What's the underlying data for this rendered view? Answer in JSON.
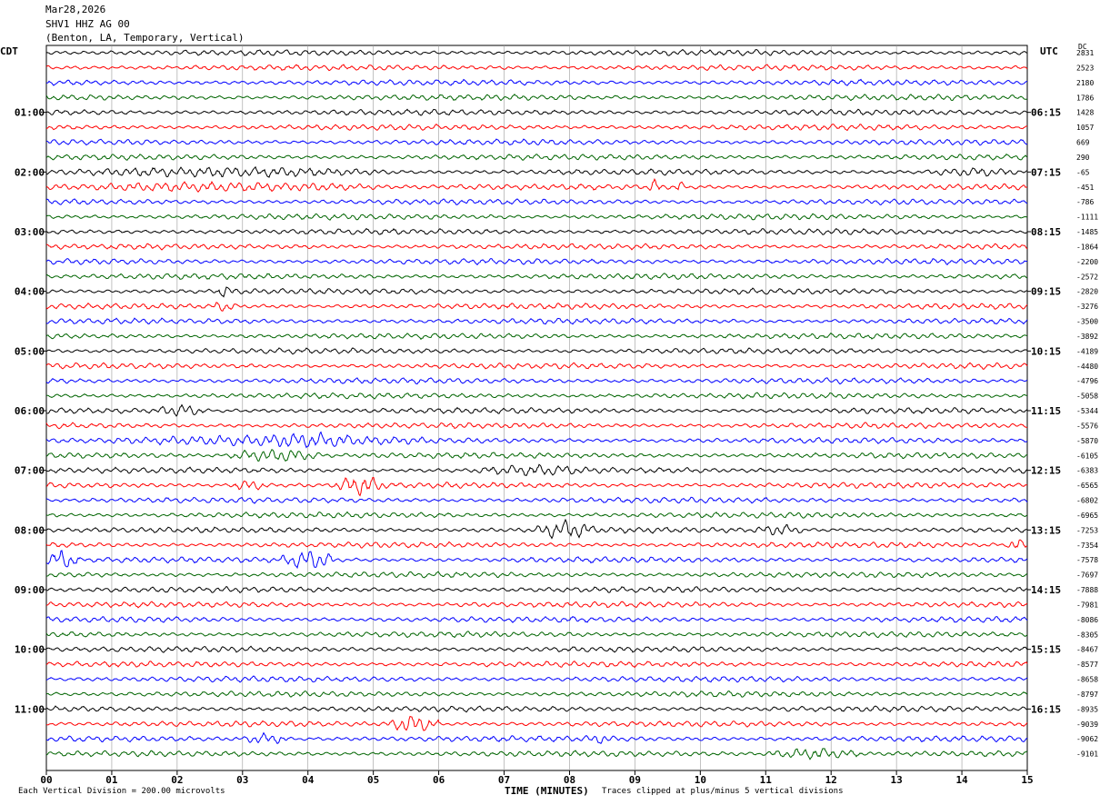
{
  "header": {
    "date": "Mar28,2026",
    "station": "SHV1 HHZ AG 00",
    "location": "(Benton, LA, Temporary, Vertical)"
  },
  "left_zone": "CDT",
  "right_zone": "UTC",
  "dc_label": "DC",
  "footer": {
    "scale": "Each Vertical Division =  200.00 microvolts",
    "clip": "Traces clipped at plus/minus 5 vertical divisions"
  },
  "chart_data": {
    "type": "line",
    "title": "",
    "xlabel": "TIME (MINUTES)",
    "ylabel": "",
    "xlim": [
      0,
      15
    ],
    "x_ticks": [
      "00",
      "01",
      "02",
      "03",
      "04",
      "05",
      "06",
      "07",
      "08",
      "09",
      "10",
      "11",
      "12",
      "13",
      "14",
      "15"
    ],
    "rows": 48,
    "minutes_per_row": 15,
    "trace_colors": [
      "#000000",
      "#ff0000",
      "#0000ff",
      "#006400"
    ],
    "cdt_labels": [
      {
        "row": 4,
        "label": "01:00"
      },
      {
        "row": 8,
        "label": "02:00"
      },
      {
        "row": 12,
        "label": "03:00"
      },
      {
        "row": 16,
        "label": "04:00"
      },
      {
        "row": 20,
        "label": "05:00"
      },
      {
        "row": 24,
        "label": "06:00"
      },
      {
        "row": 28,
        "label": "07:00"
      },
      {
        "row": 32,
        "label": "08:00"
      },
      {
        "row": 36,
        "label": "09:00"
      },
      {
        "row": 40,
        "label": "10:00"
      },
      {
        "row": 44,
        "label": "11:00"
      }
    ],
    "utc_labels": [
      {
        "row": 4,
        "label": "06:15"
      },
      {
        "row": 8,
        "label": "07:15"
      },
      {
        "row": 12,
        "label": "08:15"
      },
      {
        "row": 16,
        "label": "09:15"
      },
      {
        "row": 20,
        "label": "10:15"
      },
      {
        "row": 24,
        "label": "11:15"
      },
      {
        "row": 28,
        "label": "12:15"
      },
      {
        "row": 32,
        "label": "13:15"
      },
      {
        "row": 36,
        "label": "14:15"
      },
      {
        "row": 40,
        "label": "15:15"
      },
      {
        "row": 44,
        "label": "16:15"
      }
    ],
    "dc_offsets": [
      "2831",
      "2523",
      "2180",
      "1786",
      "1428",
      "1057",
      "669",
      "290",
      "-65",
      "-451",
      "-786",
      "-1111",
      "-1485",
      "-1864",
      "-2200",
      "-2572",
      "-2820",
      "-3276",
      "-3500",
      "-3892",
      "-4189",
      "-4480",
      "-4796",
      "-5058",
      "-5344",
      "-5576",
      "-5870",
      "-6105",
      "-6383",
      "-6565",
      "-6802",
      "-6965",
      "-7253",
      "-7354",
      "-7578",
      "-7697",
      "-7888",
      "-7981",
      "-8086",
      "-8305",
      "-8467",
      "-8577",
      "-8658",
      "-8797",
      "-8935",
      "-9039",
      "-9062",
      "-9101"
    ],
    "events": [
      {
        "row": 8,
        "start": 0.0,
        "end": 5.3,
        "amp": 2.3
      },
      {
        "row": 9,
        "start": 0.0,
        "end": 5.3,
        "amp": 2.2
      },
      {
        "row": 8,
        "start": 13.4,
        "end": 15.0,
        "amp": 2.0
      },
      {
        "row": 9,
        "start": 9.2,
        "end": 9.4,
        "amp": 3.5
      },
      {
        "row": 9,
        "start": 9.6,
        "end": 9.75,
        "amp": 3.0
      },
      {
        "row": 16,
        "start": 2.6,
        "end": 2.9,
        "amp": 3.0
      },
      {
        "row": 17,
        "start": 2.5,
        "end": 2.9,
        "amp": 2.5
      },
      {
        "row": 24,
        "start": 1.7,
        "end": 2.4,
        "amp": 3.0
      },
      {
        "row": 26,
        "start": 0.5,
        "end": 6.5,
        "amp": 2.3
      },
      {
        "row": 27,
        "start": 2.8,
        "end": 4.2,
        "amp": 3.0
      },
      {
        "row": 26,
        "start": 3.0,
        "end": 5.0,
        "amp": 3.5
      },
      {
        "row": 28,
        "start": 6.5,
        "end": 8.4,
        "amp": 2.5
      },
      {
        "row": 29,
        "start": 4.4,
        "end": 5.2,
        "amp": 4.5
      },
      {
        "row": 29,
        "start": 2.8,
        "end": 3.4,
        "amp": 2.5
      },
      {
        "row": 32,
        "start": 7.5,
        "end": 8.4,
        "amp": 4.2
      },
      {
        "row": 32,
        "start": 10.8,
        "end": 11.6,
        "amp": 2.5
      },
      {
        "row": 33,
        "start": 14.7,
        "end": 15.0,
        "amp": 3.0
      },
      {
        "row": 34,
        "start": 0.0,
        "end": 0.5,
        "amp": 4.5
      },
      {
        "row": 34,
        "start": 3.6,
        "end": 4.4,
        "amp": 4.5
      },
      {
        "row": 45,
        "start": 5.2,
        "end": 6.0,
        "amp": 4.0
      },
      {
        "row": 46,
        "start": 3.0,
        "end": 3.7,
        "amp": 2.5
      },
      {
        "row": 46,
        "start": 8.2,
        "end": 8.7,
        "amp": 2.3
      },
      {
        "row": 47,
        "start": 11.0,
        "end": 12.5,
        "amp": 2.6
      }
    ]
  }
}
